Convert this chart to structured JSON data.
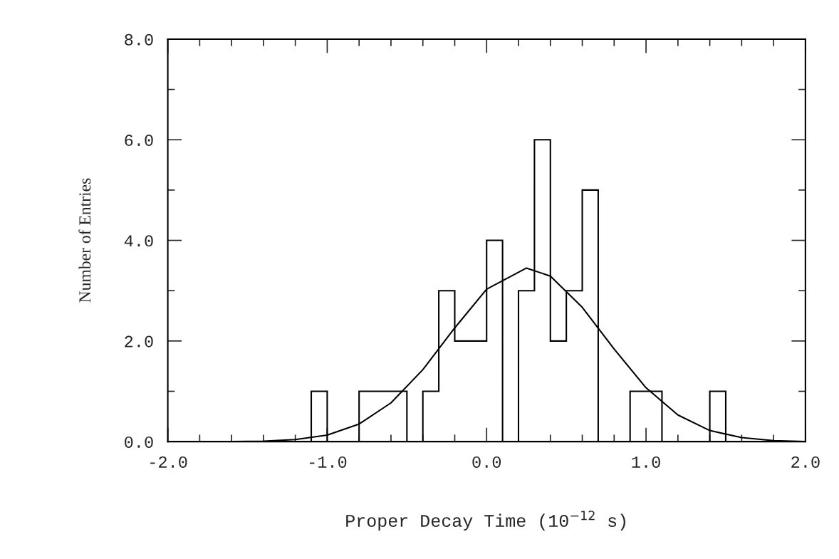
{
  "chart_data": {
    "type": "histogram",
    "xlabel": "Proper Decay Time (10$^{−12}$ s)",
    "ylabel": "Number of Entries",
    "xlim": [
      -2.0,
      2.0
    ],
    "ylim": [
      0,
      8
    ],
    "xticks": [
      {
        "value": -2,
        "label": "-2.0"
      },
      {
        "value": -1.8,
        "label": null
      },
      {
        "value": -1.6,
        "label": null
      },
      {
        "value": -1.4,
        "label": null
      },
      {
        "value": -1.2,
        "label": null
      },
      {
        "value": -1,
        "label": "-1.0"
      },
      {
        "value": -0.8,
        "label": null
      },
      {
        "value": -0.6,
        "label": null
      },
      {
        "value": -0.4,
        "label": null
      },
      {
        "value": -0.2,
        "label": null
      },
      {
        "value": 0,
        "label": "0.0"
      },
      {
        "value": 0.2,
        "label": null
      },
      {
        "value": 0.4,
        "label": null
      },
      {
        "value": 0.6,
        "label": null
      },
      {
        "value": 0.8,
        "label": null
      },
      {
        "value": 1,
        "label": "1.0"
      },
      {
        "value": 1.2,
        "label": null
      },
      {
        "value": 1.4,
        "label": null
      },
      {
        "value": 1.6,
        "label": null
      },
      {
        "value": 1.8,
        "label": null
      },
      {
        "value": 2,
        "label": "2.0"
      }
    ],
    "yticks": [
      {
        "value": 0,
        "label": "0.0"
      },
      {
        "value": 1,
        "label": null
      },
      {
        "value": 2,
        "label": "2.0"
      },
      {
        "value": 3,
        "label": null
      },
      {
        "value": 4,
        "label": "4.0"
      },
      {
        "value": 5,
        "label": null
      },
      {
        "value": 6,
        "label": "6.0"
      },
      {
        "value": 7,
        "label": null
      },
      {
        "value": 8,
        "label": "8.0"
      }
    ],
    "series": [
      {
        "color": "#000000",
        "bins": [
          -1.1,
          -1.0,
          -0.9,
          -0.8,
          -0.7,
          -0.6,
          -0.5,
          -0.4,
          -0.3,
          -0.2,
          -0.1,
          0.0,
          0.1,
          0.2,
          0.3,
          0.4,
          0.5,
          0.6,
          0.7,
          0.8,
          0.9,
          1.0,
          1.1,
          1.2,
          1.3,
          1.4,
          1.5
        ],
        "values": [
          1,
          0,
          0,
          1,
          1,
          1,
          0,
          1,
          3,
          2,
          2,
          4,
          0,
          3,
          6,
          2,
          3,
          5,
          0,
          0,
          1,
          1,
          0,
          0,
          0,
          1
        ]
      },
      {
        "type": "line",
        "color": "#000000",
        "x": [
          -2.0,
          -1.6,
          -1.4,
          -1.2,
          -1.0,
          -0.8,
          -0.6,
          -0.4,
          -0.2,
          0.0,
          0.25,
          0.4,
          0.6,
          0.8,
          1.0,
          1.2,
          1.4,
          1.6,
          1.8,
          2.0
        ],
        "values": [
          0,
          0,
          0.01,
          0.04,
          0.13,
          0.35,
          0.77,
          1.43,
          2.26,
          3.03,
          3.45,
          3.29,
          2.67,
          1.84,
          1.07,
          0.53,
          0.22,
          0.08,
          0.02,
          0
        ]
      }
    ],
    "grid": false,
    "legend": false
  }
}
